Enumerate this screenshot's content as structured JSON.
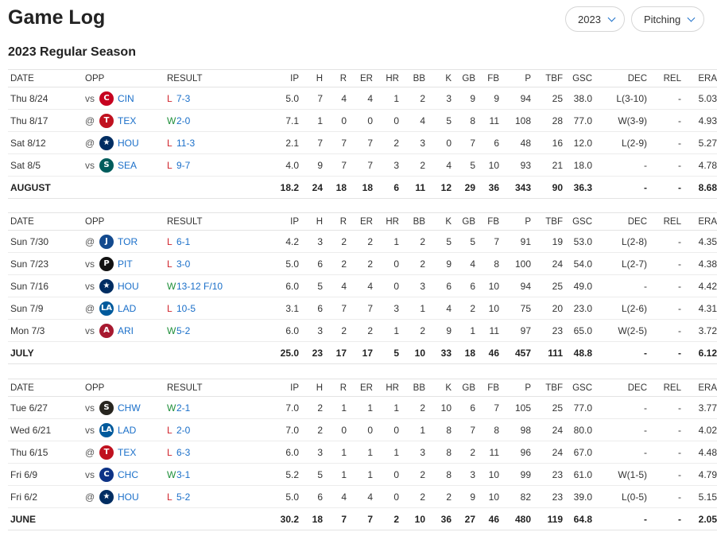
{
  "header": {
    "title": "Game Log",
    "season_select": "2023",
    "stat_type_select": "Pitching"
  },
  "season_title": "2023 Regular Season",
  "columns": [
    "DATE",
    "OPP",
    "RESULT",
    "IP",
    "H",
    "R",
    "ER",
    "HR",
    "BB",
    "K",
    "GB",
    "FB",
    "P",
    "TBF",
    "GSC",
    "DEC",
    "REL",
    "ERA"
  ],
  "months": [
    {
      "games": [
        {
          "date": "Thu 8/24",
          "ha": "vs",
          "team": "CIN",
          "logo_icon": "reds-logo-icon",
          "logo_color": "#c6011f",
          "logo_char": "C",
          "wl": "L",
          "score": "7-3",
          "ip": "5.0",
          "h": "7",
          "r": "4",
          "er": "4",
          "hr": "1",
          "bb": "2",
          "k": "3",
          "gb": "9",
          "fb": "9",
          "p": "94",
          "tbf": "25",
          "gsc": "38.0",
          "dec": "L(3-10)",
          "rel": "-",
          "era": "5.03"
        },
        {
          "date": "Thu 8/17",
          "ha": "@",
          "team": "TEX",
          "logo_icon": "rangers-logo-icon",
          "logo_color": "#c0111f",
          "logo_char": "T",
          "wl": "W",
          "score": "2-0",
          "ip": "7.1",
          "h": "1",
          "r": "0",
          "er": "0",
          "hr": "0",
          "bb": "4",
          "k": "5",
          "gb": "8",
          "fb": "11",
          "p": "108",
          "tbf": "28",
          "gsc": "77.0",
          "dec": "W(3-9)",
          "rel": "-",
          "era": "4.93"
        },
        {
          "date": "Sat 8/12",
          "ha": "@",
          "team": "HOU",
          "logo_icon": "astros-logo-icon",
          "logo_color": "#002d62",
          "logo_char": "★",
          "wl": "L",
          "score": "11-3",
          "ip": "2.1",
          "h": "7",
          "r": "7",
          "er": "7",
          "hr": "2",
          "bb": "3",
          "k": "0",
          "gb": "7",
          "fb": "6",
          "p": "48",
          "tbf": "16",
          "gsc": "12.0",
          "dec": "L(2-9)",
          "rel": "-",
          "era": "5.27"
        },
        {
          "date": "Sat 8/5",
          "ha": "vs",
          "team": "SEA",
          "logo_icon": "mariners-logo-icon",
          "logo_color": "#005c5c",
          "logo_char": "S",
          "wl": "L",
          "score": "9-7",
          "ip": "4.0",
          "h": "9",
          "r": "7",
          "er": "7",
          "hr": "3",
          "bb": "2",
          "k": "4",
          "gb": "5",
          "fb": "10",
          "p": "93",
          "tbf": "21",
          "gsc": "18.0",
          "dec": "-",
          "rel": "-",
          "era": "4.78"
        }
      ],
      "total": {
        "label": "AUGUST",
        "ip": "18.2",
        "h": "24",
        "r": "18",
        "er": "18",
        "hr": "6",
        "bb": "11",
        "k": "12",
        "gb": "29",
        "fb": "36",
        "p": "343",
        "tbf": "90",
        "gsc": "36.3",
        "dec": "-",
        "rel": "-",
        "era": "8.68"
      }
    },
    {
      "games": [
        {
          "date": "Sun 7/30",
          "ha": "@",
          "team": "TOR",
          "logo_icon": "bluejays-logo-icon",
          "logo_color": "#134a8e",
          "logo_char": "J",
          "wl": "L",
          "score": "6-1",
          "ip": "4.2",
          "h": "3",
          "r": "2",
          "er": "2",
          "hr": "1",
          "bb": "2",
          "k": "5",
          "gb": "5",
          "fb": "7",
          "p": "91",
          "tbf": "19",
          "gsc": "53.0",
          "dec": "L(2-8)",
          "rel": "-",
          "era": "4.35"
        },
        {
          "date": "Sun 7/23",
          "ha": "vs",
          "team": "PIT",
          "logo_icon": "pirates-logo-icon",
          "logo_color": "#111111",
          "logo_char": "P",
          "wl": "L",
          "score": "3-0",
          "ip": "5.0",
          "h": "6",
          "r": "2",
          "er": "2",
          "hr": "0",
          "bb": "2",
          "k": "9",
          "gb": "4",
          "fb": "8",
          "p": "100",
          "tbf": "24",
          "gsc": "54.0",
          "dec": "L(2-7)",
          "rel": "-",
          "era": "4.38"
        },
        {
          "date": "Sun 7/16",
          "ha": "vs",
          "team": "HOU",
          "logo_icon": "astros-logo-icon",
          "logo_color": "#002d62",
          "logo_char": "★",
          "wl": "W",
          "score": "13-12 F/10",
          "ip": "6.0",
          "h": "5",
          "r": "4",
          "er": "4",
          "hr": "0",
          "bb": "3",
          "k": "6",
          "gb": "6",
          "fb": "10",
          "p": "94",
          "tbf": "25",
          "gsc": "49.0",
          "dec": "-",
          "rel": "-",
          "era": "4.42"
        },
        {
          "date": "Sun 7/9",
          "ha": "@",
          "team": "LAD",
          "logo_icon": "dodgers-logo-icon",
          "logo_color": "#005a9c",
          "logo_char": "LA",
          "wl": "L",
          "score": "10-5",
          "ip": "3.1",
          "h": "6",
          "r": "7",
          "er": "7",
          "hr": "3",
          "bb": "1",
          "k": "4",
          "gb": "2",
          "fb": "10",
          "p": "75",
          "tbf": "20",
          "gsc": "23.0",
          "dec": "L(2-6)",
          "rel": "-",
          "era": "4.31"
        },
        {
          "date": "Mon 7/3",
          "ha": "vs",
          "team": "ARI",
          "logo_icon": "dbacks-logo-icon",
          "logo_color": "#a71930",
          "logo_char": "A",
          "wl": "W",
          "score": "5-2",
          "ip": "6.0",
          "h": "3",
          "r": "2",
          "er": "2",
          "hr": "1",
          "bb": "2",
          "k": "9",
          "gb": "1",
          "fb": "11",
          "p": "97",
          "tbf": "23",
          "gsc": "65.0",
          "dec": "W(2-5)",
          "rel": "-",
          "era": "3.72"
        }
      ],
      "total": {
        "label": "JULY",
        "ip": "25.0",
        "h": "23",
        "r": "17",
        "er": "17",
        "hr": "5",
        "bb": "10",
        "k": "33",
        "gb": "18",
        "fb": "46",
        "p": "457",
        "tbf": "111",
        "gsc": "48.8",
        "dec": "-",
        "rel": "-",
        "era": "6.12"
      }
    },
    {
      "games": [
        {
          "date": "Tue 6/27",
          "ha": "vs",
          "team": "CHW",
          "logo_icon": "whitesox-logo-icon",
          "logo_color": "#27251f",
          "logo_char": "S",
          "wl": "W",
          "score": "2-1",
          "ip": "7.0",
          "h": "2",
          "r": "1",
          "er": "1",
          "hr": "1",
          "bb": "2",
          "k": "10",
          "gb": "6",
          "fb": "7",
          "p": "105",
          "tbf": "25",
          "gsc": "77.0",
          "dec": "-",
          "rel": "-",
          "era": "3.77"
        },
        {
          "date": "Wed 6/21",
          "ha": "vs",
          "team": "LAD",
          "logo_icon": "dodgers-logo-icon",
          "logo_color": "#005a9c",
          "logo_char": "LA",
          "wl": "L",
          "score": "2-0",
          "ip": "7.0",
          "h": "2",
          "r": "0",
          "er": "0",
          "hr": "0",
          "bb": "1",
          "k": "8",
          "gb": "7",
          "fb": "8",
          "p": "98",
          "tbf": "24",
          "gsc": "80.0",
          "dec": "-",
          "rel": "-",
          "era": "4.02"
        },
        {
          "date": "Thu 6/15",
          "ha": "@",
          "team": "TEX",
          "logo_icon": "rangers-logo-icon",
          "logo_color": "#c0111f",
          "logo_char": "T",
          "wl": "L",
          "score": "6-3",
          "ip": "6.0",
          "h": "3",
          "r": "1",
          "er": "1",
          "hr": "1",
          "bb": "3",
          "k": "8",
          "gb": "2",
          "fb": "11",
          "p": "96",
          "tbf": "24",
          "gsc": "67.0",
          "dec": "-",
          "rel": "-",
          "era": "4.48"
        },
        {
          "date": "Fri 6/9",
          "ha": "vs",
          "team": "CHC",
          "logo_icon": "cubs-logo-icon",
          "logo_color": "#0e3386",
          "logo_char": "C",
          "wl": "W",
          "score": "3-1",
          "ip": "5.2",
          "h": "5",
          "r": "1",
          "er": "1",
          "hr": "0",
          "bb": "2",
          "k": "8",
          "gb": "3",
          "fb": "10",
          "p": "99",
          "tbf": "23",
          "gsc": "61.0",
          "dec": "W(1-5)",
          "rel": "-",
          "era": "4.79"
        },
        {
          "date": "Fri 6/2",
          "ha": "@",
          "team": "HOU",
          "logo_icon": "astros-logo-icon",
          "logo_color": "#002d62",
          "logo_char": "★",
          "wl": "L",
          "score": "5-2",
          "ip": "5.0",
          "h": "6",
          "r": "4",
          "er": "4",
          "hr": "0",
          "bb": "2",
          "k": "2",
          "gb": "9",
          "fb": "10",
          "p": "82",
          "tbf": "23",
          "gsc": "39.0",
          "dec": "L(0-5)",
          "rel": "-",
          "era": "5.15"
        }
      ],
      "total": {
        "label": "JUNE",
        "ip": "30.2",
        "h": "18",
        "r": "7",
        "er": "7",
        "hr": "2",
        "bb": "10",
        "k": "36",
        "gb": "27",
        "fb": "46",
        "p": "480",
        "tbf": "119",
        "gsc": "64.8",
        "dec": "-",
        "rel": "-",
        "era": "2.05"
      }
    }
  ]
}
